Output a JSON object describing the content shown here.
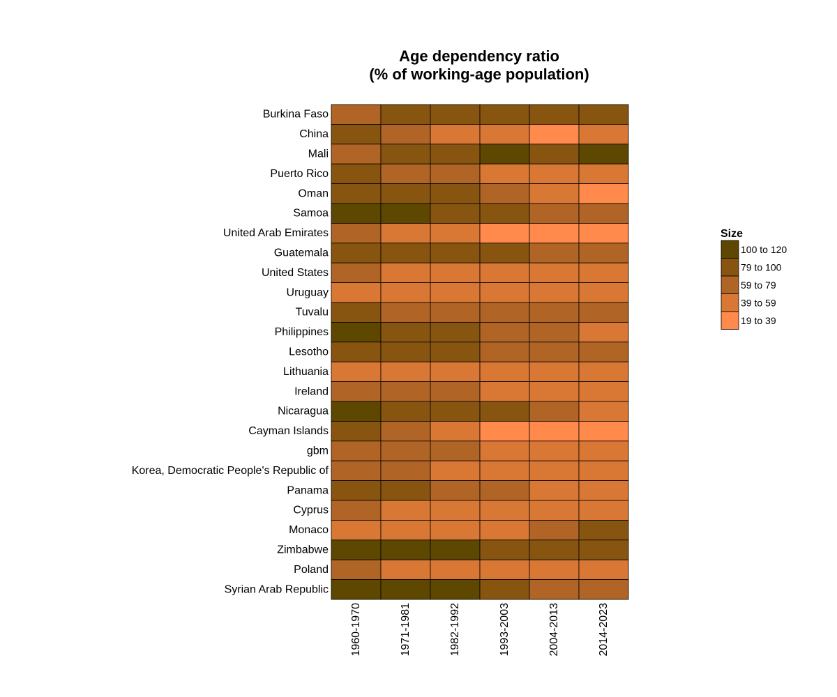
{
  "chart_data": {
    "type": "heatmap",
    "title_line1": "Age dependency ratio",
    "title_line2": "(% of working-age population)",
    "columns": [
      "1960-1970",
      "1971-1981",
      "1982-1992",
      "1993-2003",
      "2004-2013",
      "2014-2023"
    ],
    "rows": [
      "Burkina Faso",
      "China",
      "Mali",
      "Puerto Rico",
      "Oman",
      "Samoa",
      "United Arab Emirates",
      "Guatemala",
      "United States",
      "Uruguay",
      "Tuvalu",
      "Philippines",
      "Lesotho",
      "Lithuania",
      "Ireland",
      "Nicaragua",
      "Cayman Islands",
      "gbm",
      "Korea, Democratic People's Republic of",
      "Panama",
      "Cyprus",
      "Monaco",
      "Zimbabwe",
      "Poland",
      "Syrian Arab Republic"
    ],
    "bins": [
      {
        "label": "100 to 120",
        "color": "#5e4700"
      },
      {
        "label": "79 to 100",
        "color": "#885511"
      },
      {
        "label": "59 to 79",
        "color": "#b06425"
      },
      {
        "label": "39 to 59",
        "color": "#d97735"
      },
      {
        "label": "19 to 39",
        "color": "#ff8a4c"
      }
    ],
    "cells": [
      [
        2,
        1,
        1,
        1,
        1,
        1
      ],
      [
        1,
        2,
        3,
        3,
        4,
        3
      ],
      [
        2,
        1,
        1,
        0,
        1,
        0
      ],
      [
        1,
        2,
        2,
        3,
        3,
        3
      ],
      [
        1,
        1,
        1,
        2,
        3,
        4
      ],
      [
        0,
        0,
        1,
        1,
        2,
        2
      ],
      [
        2,
        3,
        3,
        4,
        4,
        4
      ],
      [
        1,
        1,
        1,
        1,
        2,
        2
      ],
      [
        2,
        3,
        3,
        3,
        3,
        3
      ],
      [
        3,
        3,
        3,
        3,
        3,
        3
      ],
      [
        1,
        2,
        2,
        2,
        2,
        2
      ],
      [
        0,
        1,
        1,
        2,
        2,
        3
      ],
      [
        1,
        1,
        1,
        2,
        2,
        2
      ],
      [
        3,
        3,
        3,
        3,
        3,
        3
      ],
      [
        2,
        2,
        2,
        3,
        3,
        3
      ],
      [
        0,
        1,
        1,
        1,
        2,
        3
      ],
      [
        1,
        2,
        3,
        4,
        4,
        4
      ],
      [
        2,
        2,
        2,
        3,
        3,
        3
      ],
      [
        2,
        2,
        3,
        3,
        3,
        3
      ],
      [
        1,
        1,
        2,
        2,
        3,
        3
      ],
      [
        2,
        3,
        3,
        3,
        3,
        3
      ],
      [
        3,
        3,
        3,
        3,
        2,
        1
      ],
      [
        0,
        0,
        0,
        1,
        1,
        1
      ],
      [
        2,
        3,
        3,
        3,
        3,
        3
      ],
      [
        0,
        0,
        0,
        1,
        2,
        2
      ]
    ],
    "legend_title": "Size",
    "legend_position": "right",
    "grid": false
  }
}
